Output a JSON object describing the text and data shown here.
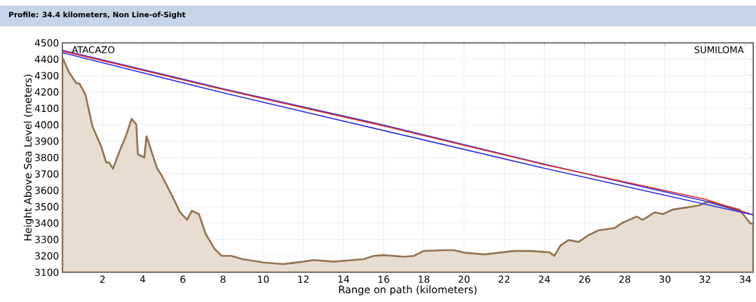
{
  "chart_data": {
    "type": "line",
    "title": "Profile: 34.4 kilometers, Non Line-of-Sight",
    "xlabel": "Range on path (kilometers)",
    "ylabel": "Height Above Sea Level (meters)",
    "annotations": [
      "ATACAZO",
      "SUMILOMA"
    ],
    "xlim": [
      0,
      34.4
    ],
    "ylim": [
      3100,
      4500
    ],
    "xticks": [
      2,
      4,
      6,
      8,
      10,
      12,
      14,
      16,
      18,
      20,
      22,
      24,
      26,
      28,
      30,
      32,
      34
    ],
    "yticks": [
      3100,
      3200,
      3300,
      3400,
      3500,
      3600,
      3700,
      3800,
      3900,
      4000,
      4100,
      4200,
      4300,
      4400,
      4500
    ],
    "grid": true,
    "line_style": "solid",
    "series": [
      {
        "type": "area",
        "color": "#e8ddd0",
        "x": [
          0,
          0.34,
          0.69,
          0.86,
          1.15,
          1.5,
          1.95,
          2.18,
          2.33,
          2.52,
          2.87,
          3.16,
          3.45,
          3.68,
          3.76,
          4.08,
          4.19,
          4.71,
          4.93,
          5.41,
          5.86,
          6.21,
          6.44,
          6.8,
          7.13,
          7.58,
          7.93,
          8.4,
          8.97,
          10,
          10.5,
          11,
          12,
          12.5,
          13.5,
          14,
          15,
          15.5,
          16,
          17,
          17.5,
          18,
          19,
          19.5,
          20,
          21.03,
          21.9,
          22.5,
          23.3,
          24.25,
          24.5,
          24.8,
          25.2,
          25.7,
          26.2,
          26.7,
          27.5,
          27.9,
          28.6,
          28.9,
          29.5,
          29.9,
          30.4,
          31.1,
          31.7,
          32.2,
          32.9,
          33.7,
          34.03,
          34.25,
          34.4
        ],
        "values": [
          4410,
          4318,
          4255,
          4250,
          4184,
          3990,
          3863,
          3770,
          3770,
          3732,
          3846,
          3930,
          4036,
          4002,
          3820,
          3800,
          3930,
          3736,
          3694,
          3580,
          3466,
          3420,
          3475,
          3455,
          3335,
          3243,
          3200,
          3200,
          3180,
          3160,
          3155,
          3150,
          3165,
          3175,
          3165,
          3170,
          3180,
          3200,
          3205,
          3195,
          3200,
          3230,
          3235,
          3235,
          3220,
          3209,
          3222,
          3230,
          3230,
          3222,
          3200,
          3263,
          3297,
          3285,
          3327,
          3356,
          3370,
          3403,
          3440,
          3420,
          3466,
          3455,
          3483,
          3496,
          3508,
          3534,
          3508,
          3483,
          3433,
          3399,
          3395
        ]
      },
      {
        "color": "#3030d8",
        "x": [
          0,
          8,
          16,
          24,
          32,
          34.4
        ],
        "values": [
          4455,
          4220,
          3998,
          3760,
          3534,
          3450
        ]
      },
      {
        "color": "#e02828",
        "x": [
          0,
          8,
          16,
          24,
          32,
          34.4
        ],
        "values": [
          4450,
          4215,
          3993,
          3757,
          3546,
          3450
        ]
      },
      {
        "color": "#3030d8",
        "x": [
          0,
          8,
          16,
          24,
          32,
          34.4
        ],
        "values": [
          4440,
          4195,
          3965,
          3735,
          3515,
          3450
        ]
      }
    ]
  }
}
